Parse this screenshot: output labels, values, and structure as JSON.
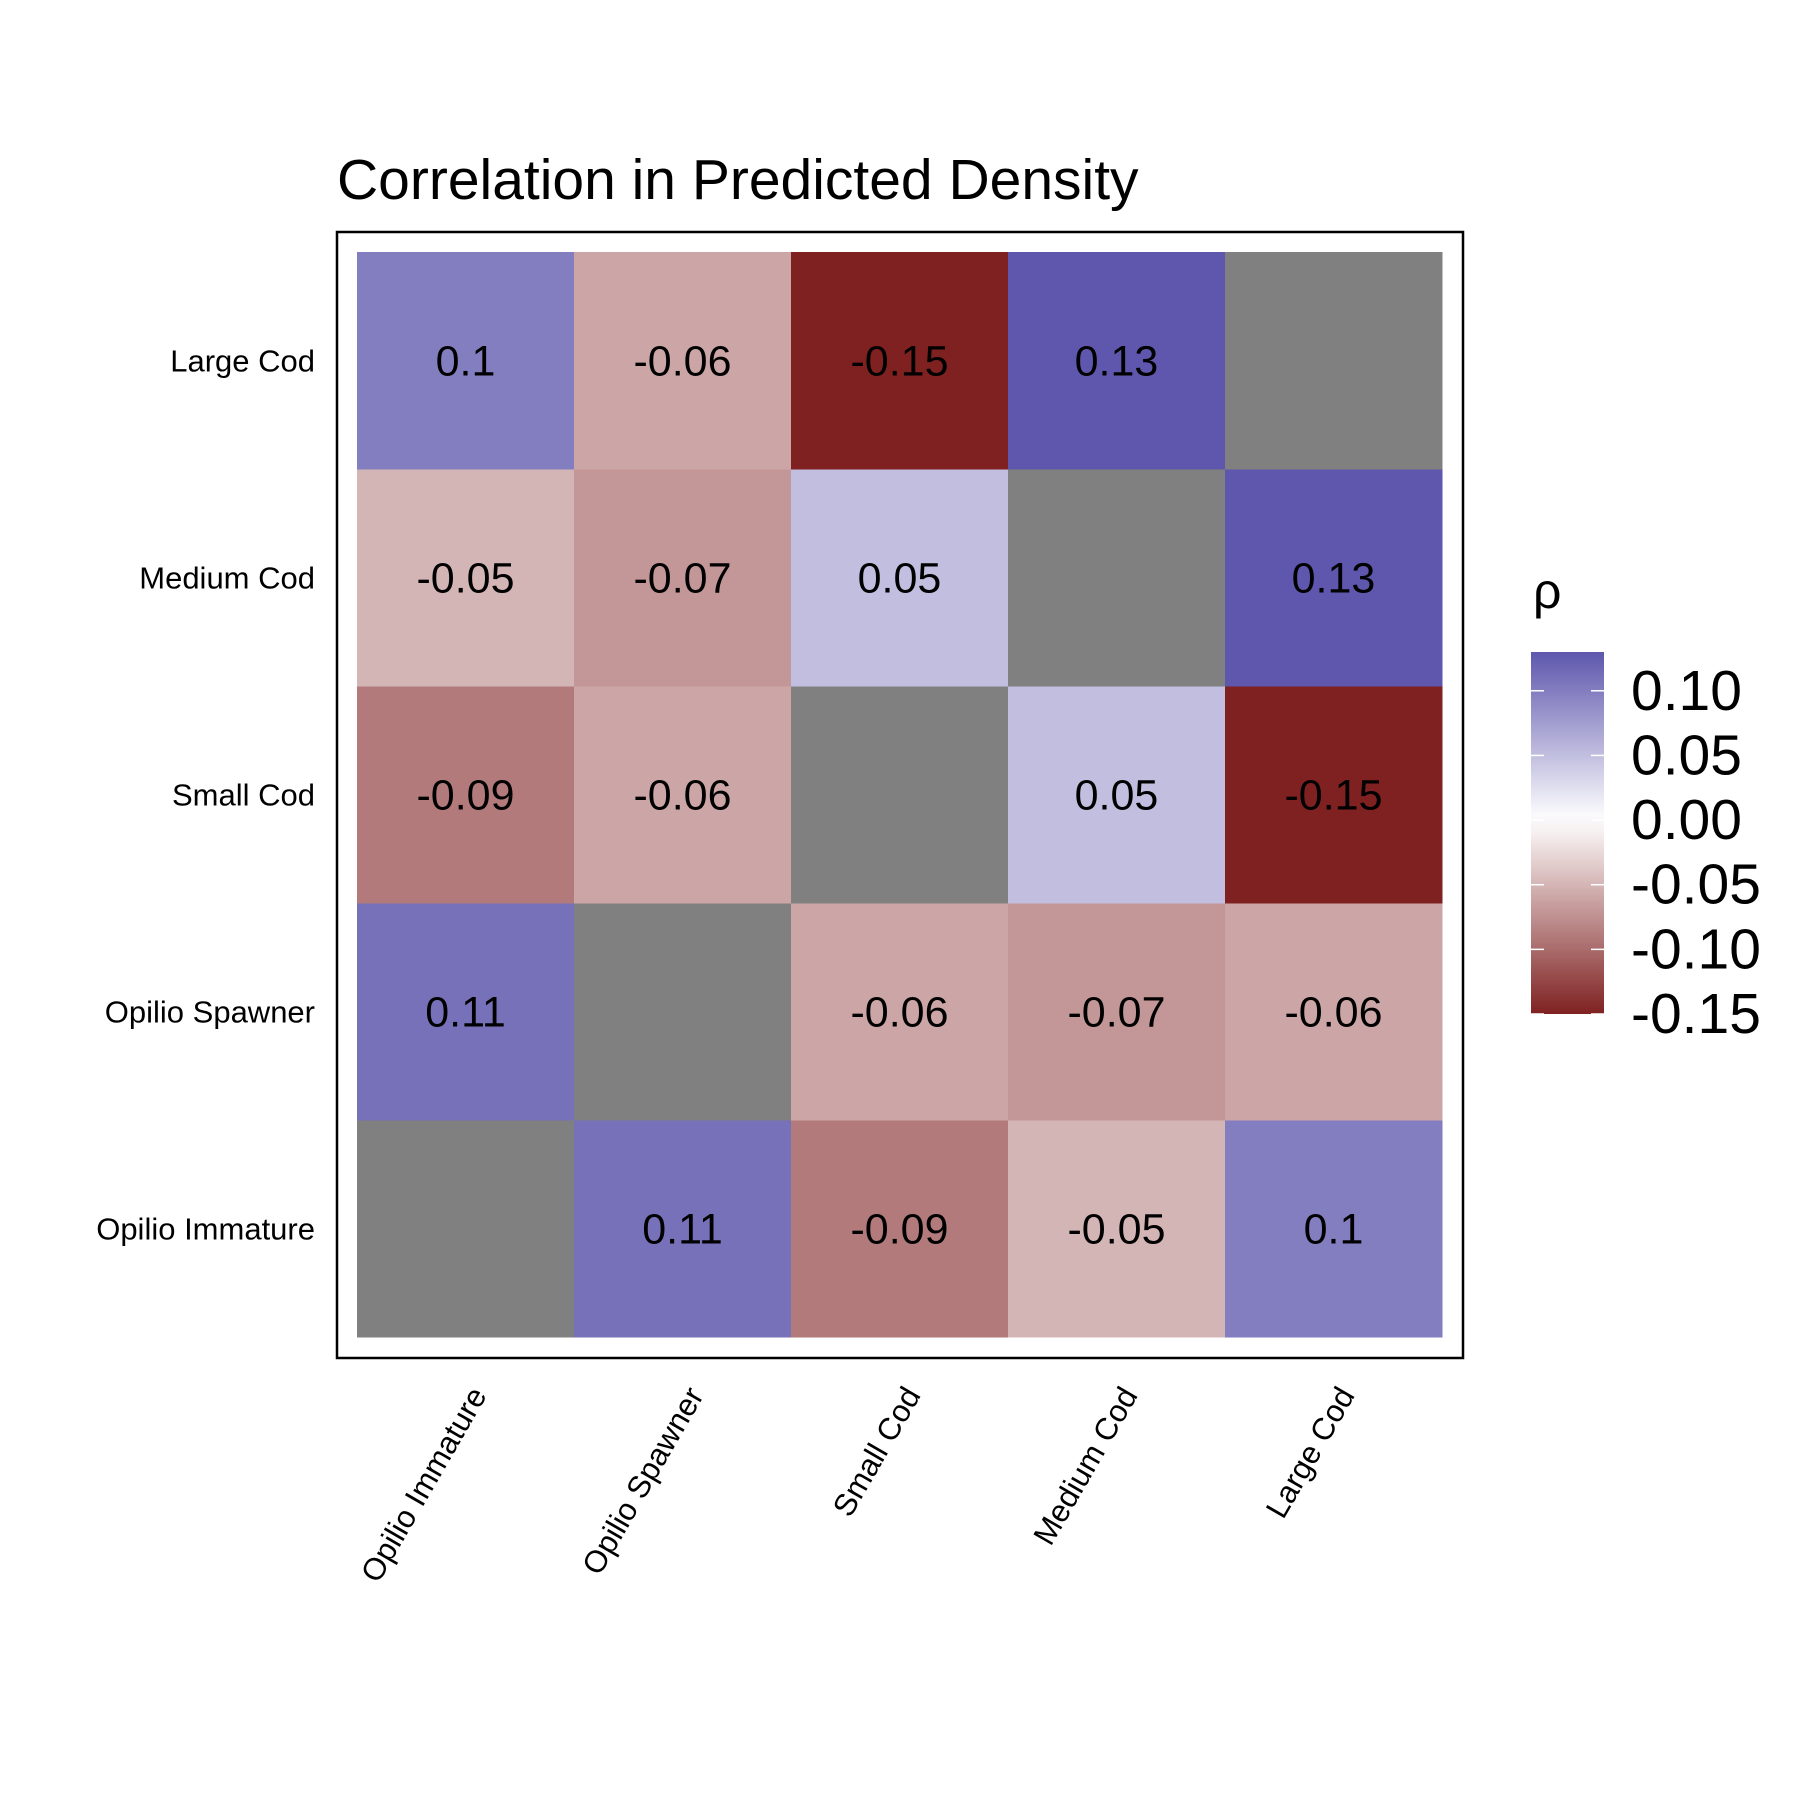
{
  "chart_data": {
    "type": "heatmap",
    "title": "Correlation in Predicted Density",
    "xlabel": "",
    "ylabel": "",
    "x_categories": [
      "Opilio Immature",
      "Opilio Spawner",
      "Small Cod",
      "Medium Cod",
      "Large Cod"
    ],
    "y_categories": [
      "Opilio Immature",
      "Opilio Spawner",
      "Small Cod",
      "Medium Cod",
      "Large Cod"
    ],
    "values": [
      [
        null,
        0.11,
        -0.09,
        -0.05,
        0.1
      ],
      [
        0.11,
        null,
        -0.06,
        -0.07,
        -0.06
      ],
      [
        -0.09,
        -0.06,
        null,
        0.05,
        -0.15
      ],
      [
        -0.05,
        -0.07,
        0.05,
        null,
        0.13
      ],
      [
        0.1,
        -0.06,
        -0.15,
        0.13,
        null
      ]
    ],
    "value_labels": [
      [
        "",
        "0.11",
        "-0.09",
        "-0.05",
        "0.1"
      ],
      [
        "0.11",
        "",
        "-0.06",
        "-0.07",
        "-0.06"
      ],
      [
        "-0.09",
        "-0.06",
        "",
        "0.05",
        "-0.15"
      ],
      [
        "-0.05",
        "-0.07",
        "0.05",
        "",
        "0.13"
      ],
      [
        "0.1",
        "-0.06",
        "-0.15",
        "0.13",
        ""
      ]
    ],
    "missing_color": "#808080",
    "colorscale": {
      "low": "#7f2121",
      "mid": "#ffffff",
      "high": "#5e57ad",
      "limits": [
        -0.15,
        0.13
      ]
    },
    "legend": {
      "title": "ρ",
      "ticks": [
        0.1,
        0.05,
        0.0,
        -0.05,
        -0.1,
        -0.15
      ],
      "tick_labels": [
        "0.10",
        "0.05",
        "0.00",
        "-0.05",
        "-0.10",
        "-0.15"
      ],
      "position": "right"
    },
    "grid": false
  }
}
